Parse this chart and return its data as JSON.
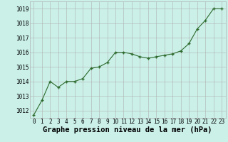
{
  "x": [
    0,
    1,
    2,
    3,
    4,
    5,
    6,
    7,
    8,
    9,
    10,
    11,
    12,
    13,
    14,
    15,
    16,
    17,
    18,
    19,
    20,
    21,
    22,
    23
  ],
  "y": [
    1011.7,
    1012.7,
    1014.0,
    1013.6,
    1014.0,
    1014.0,
    1014.2,
    1014.9,
    1015.0,
    1015.3,
    1016.0,
    1016.0,
    1015.9,
    1015.7,
    1015.6,
    1015.7,
    1015.8,
    1015.9,
    1016.1,
    1016.6,
    1017.6,
    1018.2,
    1019.0,
    1019.0
  ],
  "line_color": "#2d6a2d",
  "marker_color": "#2d6a2d",
  "bg_color": "#caf0e8",
  "grid_color": "#b0b0b0",
  "xlabel": "Graphe pression niveau de la mer (hPa)",
  "xlabel_fontsize": 7.5,
  "ylim": [
    1011.5,
    1019.5
  ],
  "yticks": [
    1012,
    1013,
    1014,
    1015,
    1016,
    1017,
    1018,
    1019
  ],
  "xticks": [
    0,
    1,
    2,
    3,
    4,
    5,
    6,
    7,
    8,
    9,
    10,
    11,
    12,
    13,
    14,
    15,
    16,
    17,
    18,
    19,
    20,
    21,
    22,
    23
  ],
  "tick_fontsize": 5.5
}
